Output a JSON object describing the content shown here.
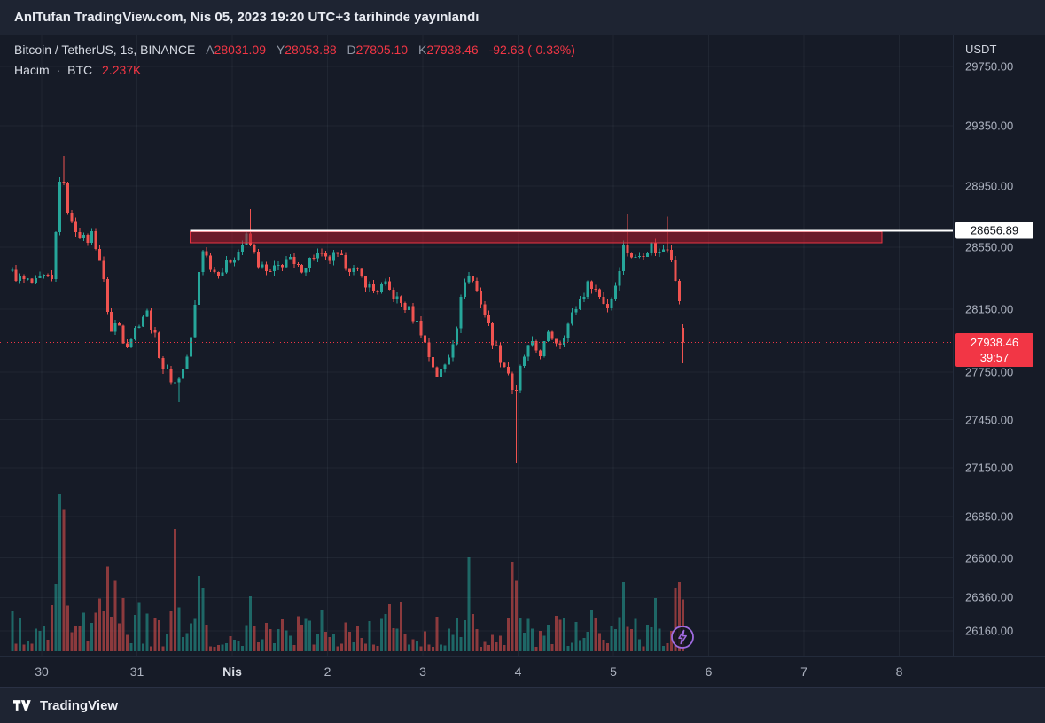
{
  "header": {
    "text": "AnlTufan TradingView.com, Nis 05, 2023 19:20 UTC+3 tarihinde yayınlandı"
  },
  "legend": {
    "symbol_title": "Bitcoin / TetherUS, 1s, BINANCE",
    "ohlc": [
      {
        "label": "A",
        "value": "28031.09"
      },
      {
        "label": "Y",
        "value": "28053.88"
      },
      {
        "label": "D",
        "value": "27805.10"
      },
      {
        "label": "K",
        "value": "27938.46"
      }
    ],
    "change": "-92.63 (-0.33%)",
    "volume": {
      "label": "Hacim",
      "separator": "·",
      "unit": "BTC",
      "value": "2.237K"
    }
  },
  "price_axis": {
    "currency": "USDT",
    "line_label": "28656.89",
    "last_price_label": "27938.46",
    "countdown": "39:57"
  },
  "time_axis": {
    "labels": [
      {
        "text": "30",
        "day": 0
      },
      {
        "text": "31",
        "day": 1
      },
      {
        "text": "Nis",
        "day": 2,
        "highlight": true
      },
      {
        "text": "2",
        "day": 3
      },
      {
        "text": "3",
        "day": 4
      },
      {
        "text": "4",
        "day": 5
      },
      {
        "text": "5",
        "day": 6
      },
      {
        "text": "6",
        "day": 7
      },
      {
        "text": "7",
        "day": 8
      },
      {
        "text": "8",
        "day": 9
      }
    ]
  },
  "footer": {
    "brand": "TradingView"
  },
  "colors": {
    "up_candle": "#26a69a",
    "down_candle": "#ef5350",
    "volume_up": "rgba(38,166,154,0.55)",
    "volume_down": "rgba(239,83,80,0.55)",
    "accent_red": "#f23645",
    "line_white": "#ffffff",
    "marker_purple": "#9f6be0",
    "grid": "rgba(170,180,200,0.07)"
  },
  "chart_data": {
    "type": "candlestick",
    "title": "Bitcoin / TetherUS, 1s, BINANCE",
    "symbol": "BTCUSDT",
    "exchange": "BINANCE",
    "interval": "1s",
    "quote_currency": "USDT",
    "scale": "log",
    "y_ticks": [
      29750,
      29350,
      28950,
      28550,
      28150,
      27750,
      27450,
      27150,
      26850,
      26600,
      26360,
      26160
    ],
    "x_labels": [
      "30",
      "31",
      "Nis",
      "2",
      "3",
      "4",
      "5",
      "6",
      "7",
      "8"
    ],
    "last_candle": {
      "open": 28031.09,
      "high": 28053.88,
      "low": 27805.1,
      "close": 27938.46,
      "change": -92.63,
      "change_pct": -0.33,
      "volume_btc": "2.237K"
    },
    "levels": {
      "horizontal_line": 28656.89,
      "line_day_start": 1.56,
      "last_price": 27938.46,
      "countdown": "39:57",
      "zone": {
        "day_start": 1.56,
        "day_end": 8.82,
        "price_top": 28650,
        "price_bottom": 28580
      }
    },
    "marker": {
      "type": "flash",
      "day": 6.73
    },
    "candle_span_days": [
      -0.33,
      6.79
    ],
    "price_path": [
      [
        -0.33,
        28400
      ],
      [
        -0.2,
        28340
      ],
      [
        -0.05,
        28310
      ],
      [
        0.05,
        28350
      ],
      [
        0.14,
        28320
      ],
      [
        0.19,
        28850
      ],
      [
        0.22,
        29060
      ],
      [
        0.27,
        28880
      ],
      [
        0.33,
        28700
      ],
      [
        0.4,
        28660
      ],
      [
        0.48,
        28580
      ],
      [
        0.55,
        28640
      ],
      [
        0.62,
        28500
      ],
      [
        0.68,
        28280
      ],
      [
        0.75,
        28000
      ],
      [
        0.82,
        28080
      ],
      [
        0.9,
        27920
      ],
      [
        0.97,
        27980
      ],
      [
        1.05,
        28080
      ],
      [
        1.12,
        28140
      ],
      [
        1.2,
        27990
      ],
      [
        1.3,
        27770
      ],
      [
        1.42,
        27680
      ],
      [
        1.5,
        27760
      ],
      [
        1.58,
        27920
      ],
      [
        1.65,
        28280
      ],
      [
        1.7,
        28560
      ],
      [
        1.76,
        28480
      ],
      [
        1.83,
        28390
      ],
      [
        1.92,
        28400
      ],
      [
        2.0,
        28470
      ],
      [
        2.08,
        28520
      ],
      [
        2.17,
        28610
      ],
      [
        2.22,
        28550
      ],
      [
        2.3,
        28440
      ],
      [
        2.4,
        28370
      ],
      [
        2.5,
        28420
      ],
      [
        2.6,
        28480
      ],
      [
        2.7,
        28400
      ],
      [
        2.8,
        28440
      ],
      [
        2.9,
        28510
      ],
      [
        3.0,
        28460
      ],
      [
        3.1,
        28490
      ],
      [
        3.22,
        28440
      ],
      [
        3.35,
        28370
      ],
      [
        3.5,
        28270
      ],
      [
        3.62,
        28300
      ],
      [
        3.75,
        28210
      ],
      [
        3.88,
        28140
      ],
      [
        4.0,
        28020
      ],
      [
        4.08,
        27860
      ],
      [
        4.18,
        27720
      ],
      [
        4.28,
        27820
      ],
      [
        4.38,
        28060
      ],
      [
        4.47,
        28380
      ],
      [
        4.55,
        28330
      ],
      [
        4.65,
        28160
      ],
      [
        4.75,
        27960
      ],
      [
        4.85,
        27820
      ],
      [
        4.93,
        27740
      ],
      [
        4.99,
        27560
      ],
      [
        5.06,
        27820
      ],
      [
        5.15,
        27920
      ],
      [
        5.25,
        27870
      ],
      [
        5.35,
        27990
      ],
      [
        5.45,
        27930
      ],
      [
        5.55,
        28060
      ],
      [
        5.65,
        28190
      ],
      [
        5.78,
        28330
      ],
      [
        5.88,
        28230
      ],
      [
        5.97,
        28160
      ],
      [
        6.05,
        28320
      ],
      [
        6.13,
        28560
      ],
      [
        6.18,
        28520
      ],
      [
        6.25,
        28470
      ],
      [
        6.33,
        28520
      ],
      [
        6.42,
        28560
      ],
      [
        6.5,
        28510
      ],
      [
        6.58,
        28570
      ],
      [
        6.64,
        28480
      ],
      [
        6.69,
        28280
      ],
      [
        6.74,
        28060
      ],
      [
        6.79,
        27938.46
      ]
    ],
    "wicks": [
      [
        0.22,
        29150
      ],
      [
        1.44,
        27560
      ],
      [
        2.17,
        28800
      ],
      [
        4.18,
        27640
      ],
      [
        4.99,
        27180
      ],
      [
        6.13,
        28770
      ],
      [
        6.58,
        28750
      ],
      [
        6.77,
        27805
      ]
    ],
    "volume_spikes": [
      [
        0.2,
        1.0,
        "up"
      ],
      [
        0.23,
        0.9,
        "down"
      ],
      [
        0.7,
        0.54,
        "down"
      ],
      [
        0.76,
        0.45,
        "down"
      ],
      [
        0.86,
        0.34,
        "down"
      ],
      [
        1.4,
        0.78,
        "down"
      ],
      [
        1.66,
        0.48,
        "up"
      ],
      [
        1.7,
        0.4,
        "up"
      ],
      [
        2.17,
        0.35,
        "up"
      ],
      [
        2.95,
        0.26,
        "up"
      ],
      [
        3.65,
        0.3,
        "down"
      ],
      [
        3.76,
        0.31,
        "down"
      ],
      [
        4.47,
        0.6,
        "up"
      ],
      [
        4.94,
        0.57,
        "down"
      ],
      [
        4.99,
        0.45,
        "down"
      ],
      [
        5.78,
        0.26,
        "up"
      ],
      [
        6.1,
        0.44,
        "up"
      ],
      [
        6.45,
        0.34,
        "up"
      ],
      [
        6.64,
        0.4,
        "down"
      ],
      [
        6.7,
        0.44,
        "down"
      ],
      [
        6.75,
        0.35,
        "down"
      ],
      [
        6.79,
        0.33,
        "down"
      ]
    ]
  }
}
